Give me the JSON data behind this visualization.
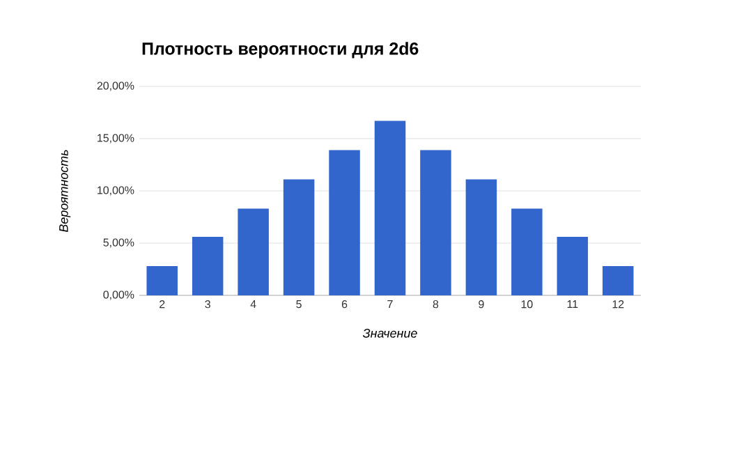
{
  "chart_data": {
    "type": "bar",
    "title": "Плотность вероятности для 2d6",
    "xlabel": "Значение",
    "ylabel": "Вероятность",
    "categories": [
      "2",
      "3",
      "4",
      "5",
      "6",
      "7",
      "8",
      "9",
      "10",
      "11",
      "12"
    ],
    "values": [
      2.8,
      5.6,
      8.3,
      11.1,
      13.9,
      16.7,
      13.9,
      11.1,
      8.3,
      5.6,
      2.8
    ],
    "color": "#3366cc",
    "ylim": [
      0,
      20
    ],
    "yticks": [
      {
        "value": 0,
        "label": "0,00%"
      },
      {
        "value": 5,
        "label": "5,00%"
      },
      {
        "value": 10,
        "label": "10,00%"
      },
      {
        "value": 15,
        "label": "15,00%"
      },
      {
        "value": 20,
        "label": "20,00%"
      }
    ],
    "grid": "y"
  }
}
